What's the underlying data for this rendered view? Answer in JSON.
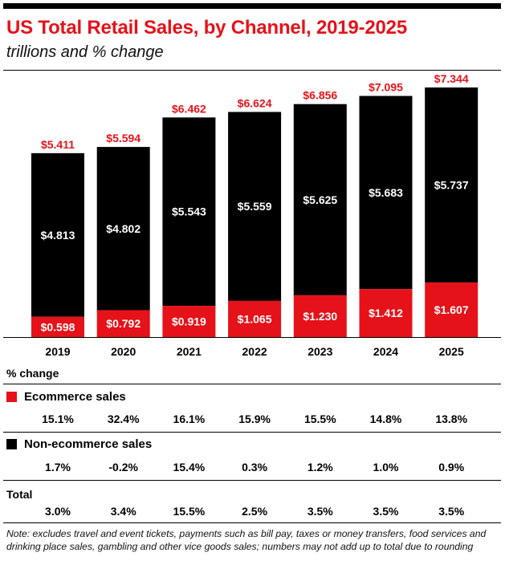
{
  "header": {
    "title": "US Total Retail Sales, by Channel, 2019-2025",
    "subtitle": "trillions and % change"
  },
  "colors": {
    "ecommerce": "#e5121a",
    "nonecommerce": "#000000",
    "accent": "#e5121a"
  },
  "chart_data": {
    "type": "bar",
    "stacked": true,
    "categories": [
      "2019",
      "2020",
      "2021",
      "2022",
      "2023",
      "2024",
      "2025"
    ],
    "series": [
      {
        "name": "Ecommerce sales",
        "values": [
          0.598,
          0.792,
          0.919,
          1.065,
          1.23,
          1.412,
          1.607
        ],
        "labels": [
          "$0.598",
          "$0.792",
          "$0.919",
          "$1.065",
          "$1.230",
          "$1.412",
          "$1.607"
        ]
      },
      {
        "name": "Non-ecommerce sales",
        "values": [
          4.813,
          4.802,
          5.543,
          5.559,
          5.625,
          5.683,
          5.737
        ],
        "labels": [
          "$4.813",
          "$4.802",
          "$5.543",
          "$5.559",
          "$5.625",
          "$5.683",
          "$5.737"
        ]
      }
    ],
    "totals": [
      5.411,
      5.594,
      6.462,
      6.624,
      6.856,
      7.095,
      7.344
    ],
    "total_labels": [
      "$5.411",
      "$5.594",
      "$6.462",
      "$6.624",
      "$6.856",
      "$7.095",
      "$7.344"
    ],
    "ylim": [
      0,
      7.344
    ],
    "grid": false
  },
  "pct_change": {
    "heading": "% change",
    "ecommerce": {
      "label": "Ecommerce sales",
      "values": [
        "15.1%",
        "32.4%",
        "16.1%",
        "15.9%",
        "15.5%",
        "14.8%",
        "13.8%"
      ]
    },
    "nonecommerce": {
      "label": "Non-ecommerce sales",
      "values": [
        "1.7%",
        "-0.2%",
        "15.4%",
        "0.3%",
        "1.2%",
        "1.0%",
        "0.9%"
      ]
    },
    "total": {
      "label": "Total",
      "values": [
        "3.0%",
        "3.4%",
        "15.5%",
        "2.5%",
        "3.5%",
        "3.5%",
        "3.5%"
      ]
    }
  },
  "note": "Note: excludes travel and event tickets, payments such as bill pay, taxes or money transfers, food services and drinking place sales, gambling and other vice goods sales; numbers may not add up to total due to rounding"
}
